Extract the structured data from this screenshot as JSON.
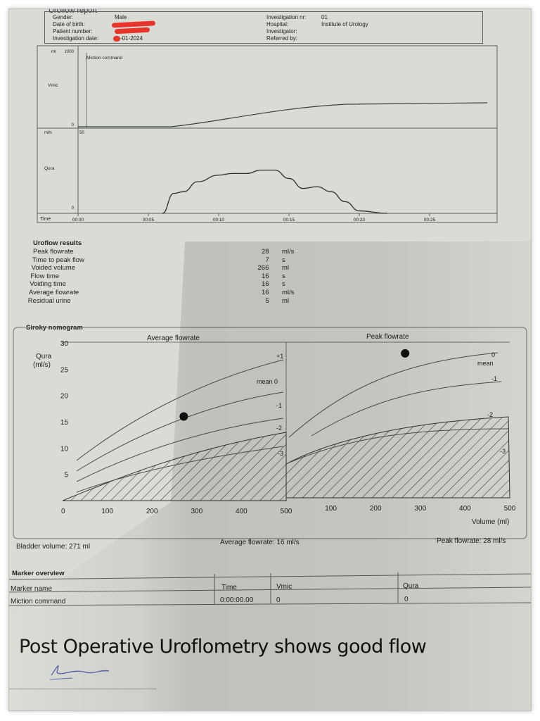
{
  "header": {
    "title": "Uroflow report",
    "gender_label": "Gender:",
    "gender": "Male",
    "dob_label": "Date of birth:",
    "patient_label": "Patient number:",
    "inv_date_label": "Investigation date:",
    "inv_date": "-01-2024",
    "inv_nr_label": "Investigation nr:",
    "inv_nr": "01",
    "hospital_label": "Hospital:",
    "hospital": "Institute of Urology",
    "investigator_label": "Investigator:",
    "referred_label": "Referred by:"
  },
  "top_chart": {
    "vmic_unit": "ml",
    "vmic_max": "1000",
    "vmic_min": "0",
    "vmic_label": "Vmic",
    "miction_command": "Miction command",
    "qura_unit": "ml/s",
    "qura_max": "50",
    "qura_min": "0",
    "qura_label": "Qura",
    "time_label": "Time",
    "time_ticks": [
      "00:00",
      "00:05",
      "00:10",
      "00:15",
      "00:20",
      "00:25"
    ]
  },
  "results": {
    "title": "Uroflow results",
    "rows": [
      {
        "label": "Peak flowrate",
        "value": "28",
        "unit": "ml/s"
      },
      {
        "label": "Time to peak flow",
        "value": "7",
        "unit": "s"
      },
      {
        "label": "Voided volume",
        "value": "266",
        "unit": "ml"
      },
      {
        "label": "Flow time",
        "value": "16",
        "unit": "s"
      },
      {
        "label": "Voiding time",
        "value": "16",
        "unit": "s"
      },
      {
        "label": "Average flowrate",
        "value": "16",
        "unit": "ml/s"
      },
      {
        "label": "Residual urine",
        "value": "5",
        "unit": "ml"
      }
    ]
  },
  "nomogram": {
    "title": "Siroky nomogram",
    "left_title": "Average flowrate",
    "right_title": "Peak flowrate",
    "y_label": "Qura",
    "y_unit": "(ml/s)",
    "y_ticks": [
      "30",
      "25",
      "20",
      "15",
      "10",
      "5",
      "0"
    ],
    "x_ticks_left": [
      "100",
      "200",
      "300",
      "400",
      "500"
    ],
    "x_ticks_right": [
      "100",
      "200",
      "300",
      "400",
      "500"
    ],
    "x_label": "Volume (ml)",
    "left_curves": [
      "+1",
      "mean 0",
      "-1",
      "-2",
      "-3"
    ],
    "right_curves": [
      "0",
      "mean",
      "-1",
      "-2",
      "-3"
    ],
    "bladder_volume": "Bladder volume: 271 ml",
    "avg_flowrate": "Average flowrate: 16 ml/s",
    "peak_flowrate": "Peak flowrate: 28 ml/s"
  },
  "markers": {
    "title": "Marker overview",
    "columns": [
      "Marker name",
      "Time",
      "Vmic",
      "Qura"
    ],
    "row": [
      "Miction command",
      "0:00:00.00",
      "0",
      "0"
    ]
  },
  "caption": "Post Operative Uroflometry shows good flow",
  "chart_data": [
    {
      "type": "line",
      "title": "",
      "xlabel": "Time",
      "ylabel": "Qura",
      "x": [
        6,
        6.8,
        7.5,
        8.5,
        10,
        11,
        12,
        13,
        14,
        15,
        16,
        17,
        18,
        19,
        20,
        22
      ],
      "series": [
        {
          "values": [
            0,
            12,
            13,
            19,
            23,
            24,
            24,
            26,
            26,
            21,
            15,
            16,
            13,
            7,
            1.5,
            0
          ]
        }
      ],
      "xlim": [
        0,
        30
      ],
      "ylim": [
        0,
        50
      ]
    },
    {
      "type": "scatter",
      "title": "Siroky nomogram",
      "xlabel": "Volume (ml)",
      "ylabel": "Qura",
      "series": [
        {
          "name": "Average flowrate",
          "values": [
            {
              "x": 271,
              "y": 16
            }
          ]
        },
        {
          "name": "Peak flowrate",
          "values": [
            {
              "x": 266,
              "y": 28
            }
          ]
        }
      ],
      "xlim": [
        0,
        500
      ],
      "ylim": [
        0,
        30
      ]
    }
  ]
}
